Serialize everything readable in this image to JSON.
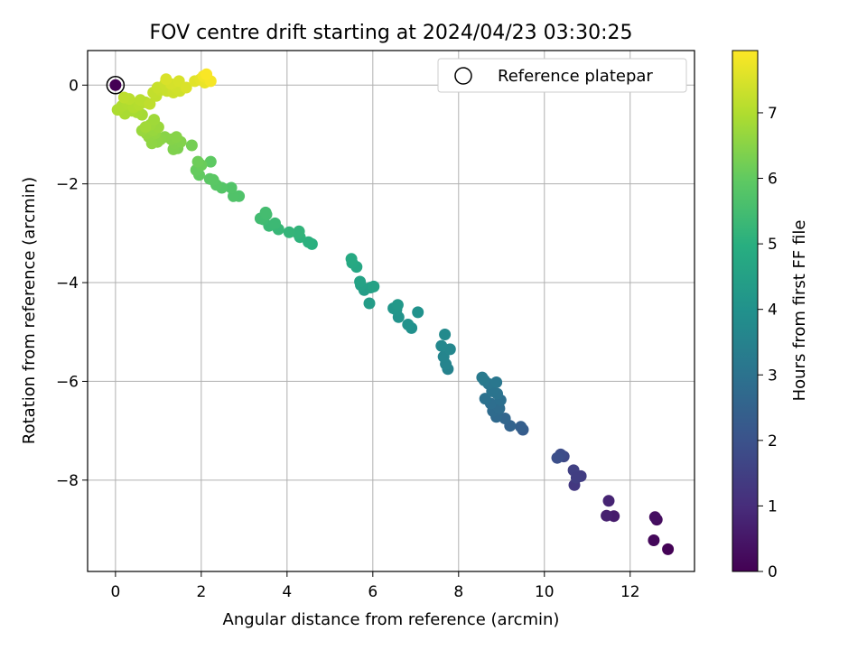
{
  "chart_data": {
    "type": "scatter",
    "title": "FOV centre drift starting at 2024/04/23 03:30:25",
    "xlabel": "Angular distance from reference (arcmin)",
    "ylabel": "Rotation from reference (arcmin)",
    "xlim": [
      -0.65,
      13.5
    ],
    "ylim": [
      -9.85,
      0.7
    ],
    "xticks": [
      0,
      2,
      4,
      6,
      8,
      10,
      12
    ],
    "yticks": [
      0,
      -2,
      -4,
      -6,
      -8
    ],
    "grid": true,
    "legend": {
      "position": "top-right",
      "entries": [
        "Reference platepar"
      ]
    },
    "colorbar": {
      "label": "Hours from first FF file",
      "range": [
        0,
        7.95
      ],
      "ticks": [
        0,
        1,
        2,
        3,
        4,
        5,
        6,
        7
      ],
      "colormap": "viridis"
    },
    "reference": {
      "x": 0,
      "y": 0
    },
    "points": [
      {
        "x": 12.88,
        "y": -9.4,
        "c": 0.05
      },
      {
        "x": 12.55,
        "y": -9.22,
        "c": 0.15
      },
      {
        "x": 12.62,
        "y": -8.8,
        "c": 0.25
      },
      {
        "x": 12.58,
        "y": -8.75,
        "c": 0.32
      },
      {
        "x": 11.62,
        "y": -8.73,
        "c": 0.6
      },
      {
        "x": 11.45,
        "y": -8.72,
        "c": 0.7
      },
      {
        "x": 11.5,
        "y": -8.42,
        "c": 0.8
      },
      {
        "x": 10.7,
        "y": -8.1,
        "c": 1.3
      },
      {
        "x": 10.85,
        "y": -7.92,
        "c": 1.4
      },
      {
        "x": 10.68,
        "y": -7.8,
        "c": 1.5
      },
      {
        "x": 10.75,
        "y": -7.95,
        "c": 1.45
      },
      {
        "x": 10.45,
        "y": -7.52,
        "c": 1.75
      },
      {
        "x": 10.38,
        "y": -7.48,
        "c": 1.85
      },
      {
        "x": 10.3,
        "y": -7.55,
        "c": 1.9
      },
      {
        "x": 9.5,
        "y": -6.98,
        "c": 2.3
      },
      {
        "x": 9.45,
        "y": -6.92,
        "c": 2.4
      },
      {
        "x": 9.2,
        "y": -6.9,
        "c": 2.5
      },
      {
        "x": 9.08,
        "y": -6.75,
        "c": 2.6
      },
      {
        "x": 8.88,
        "y": -6.72,
        "c": 2.7
      },
      {
        "x": 8.8,
        "y": -6.6,
        "c": 2.75
      },
      {
        "x": 8.95,
        "y": -6.55,
        "c": 2.8
      },
      {
        "x": 8.75,
        "y": -6.45,
        "c": 2.85
      },
      {
        "x": 8.98,
        "y": -6.38,
        "c": 2.9
      },
      {
        "x": 8.62,
        "y": -6.35,
        "c": 2.95
      },
      {
        "x": 8.9,
        "y": -6.25,
        "c": 3.0
      },
      {
        "x": 8.78,
        "y": -6.2,
        "c": 3.05
      },
      {
        "x": 8.7,
        "y": -6.05,
        "c": 3.1
      },
      {
        "x": 8.88,
        "y": -6.02,
        "c": 3.15
      },
      {
        "x": 8.6,
        "y": -5.98,
        "c": 3.2
      },
      {
        "x": 8.55,
        "y": -5.92,
        "c": 3.25
      },
      {
        "x": 7.75,
        "y": -5.75,
        "c": 3.5
      },
      {
        "x": 7.7,
        "y": -5.65,
        "c": 3.55
      },
      {
        "x": 7.65,
        "y": -5.5,
        "c": 3.6
      },
      {
        "x": 7.8,
        "y": -5.35,
        "c": 3.65
      },
      {
        "x": 7.6,
        "y": -5.28,
        "c": 3.7
      },
      {
        "x": 7.68,
        "y": -5.05,
        "c": 3.75
      },
      {
        "x": 6.9,
        "y": -4.92,
        "c": 3.95
      },
      {
        "x": 6.82,
        "y": -4.85,
        "c": 4.0
      },
      {
        "x": 6.6,
        "y": -4.7,
        "c": 4.05
      },
      {
        "x": 6.55,
        "y": -4.55,
        "c": 4.1
      },
      {
        "x": 6.48,
        "y": -4.52,
        "c": 4.15
      },
      {
        "x": 6.58,
        "y": -4.45,
        "c": 4.2
      },
      {
        "x": 7.05,
        "y": -4.6,
        "c": 4.0
      },
      {
        "x": 5.92,
        "y": -4.42,
        "c": 4.35
      },
      {
        "x": 5.8,
        "y": -4.15,
        "c": 4.4
      },
      {
        "x": 5.95,
        "y": -4.1,
        "c": 4.45
      },
      {
        "x": 5.72,
        "y": -4.05,
        "c": 4.5
      },
      {
        "x": 6.02,
        "y": -4.08,
        "c": 4.52
      },
      {
        "x": 5.7,
        "y": -3.98,
        "c": 4.55
      },
      {
        "x": 5.62,
        "y": -3.68,
        "c": 4.7
      },
      {
        "x": 5.52,
        "y": -3.6,
        "c": 4.75
      },
      {
        "x": 5.5,
        "y": -3.52,
        "c": 4.8
      },
      {
        "x": 4.58,
        "y": -3.22,
        "c": 5.0
      },
      {
        "x": 4.5,
        "y": -3.18,
        "c": 5.05
      },
      {
        "x": 4.3,
        "y": -3.08,
        "c": 5.1
      },
      {
        "x": 4.25,
        "y": -3.0,
        "c": 5.15
      },
      {
        "x": 4.28,
        "y": -2.96,
        "c": 5.17
      },
      {
        "x": 4.05,
        "y": -2.98,
        "c": 5.2
      },
      {
        "x": 3.8,
        "y": -2.92,
        "c": 5.28
      },
      {
        "x": 3.58,
        "y": -2.85,
        "c": 5.32
      },
      {
        "x": 3.72,
        "y": -2.8,
        "c": 5.35
      },
      {
        "x": 3.45,
        "y": -2.72,
        "c": 5.4
      },
      {
        "x": 3.38,
        "y": -2.7,
        "c": 5.45
      },
      {
        "x": 3.52,
        "y": -2.62,
        "c": 5.48
      },
      {
        "x": 3.5,
        "y": -2.58,
        "c": 5.5
      },
      {
        "x": 2.88,
        "y": -2.25,
        "c": 5.7
      },
      {
        "x": 2.75,
        "y": -2.25,
        "c": 5.72
      },
      {
        "x": 2.7,
        "y": -2.08,
        "c": 5.75
      },
      {
        "x": 2.48,
        "y": -2.08,
        "c": 5.8
      },
      {
        "x": 2.35,
        "y": -2.02,
        "c": 5.85
      },
      {
        "x": 2.28,
        "y": -1.92,
        "c": 5.88
      },
      {
        "x": 2.2,
        "y": -1.9,
        "c": 5.9
      },
      {
        "x": 2.22,
        "y": -1.55,
        "c": 5.95
      },
      {
        "x": 1.95,
        "y": -1.82,
        "c": 6.0
      },
      {
        "x": 1.88,
        "y": -1.72,
        "c": 6.05
      },
      {
        "x": 2.0,
        "y": -1.62,
        "c": 6.1
      },
      {
        "x": 1.92,
        "y": -1.55,
        "c": 6.15
      },
      {
        "x": 1.78,
        "y": -1.22,
        "c": 6.25
      },
      {
        "x": 1.45,
        "y": -1.28,
        "c": 6.35
      },
      {
        "x": 1.35,
        "y": -1.3,
        "c": 6.38
      },
      {
        "x": 1.38,
        "y": -1.18,
        "c": 6.4
      },
      {
        "x": 1.52,
        "y": -1.15,
        "c": 6.42
      },
      {
        "x": 1.3,
        "y": -1.1,
        "c": 6.45
      },
      {
        "x": 1.42,
        "y": -1.05,
        "c": 6.48
      },
      {
        "x": 1.15,
        "y": -1.05,
        "c": 6.5
      },
      {
        "x": 1.05,
        "y": -1.1,
        "c": 6.52
      },
      {
        "x": 0.98,
        "y": -1.15,
        "c": 6.55
      },
      {
        "x": 0.85,
        "y": -1.18,
        "c": 6.58
      },
      {
        "x": 0.78,
        "y": -1.05,
        "c": 6.6
      },
      {
        "x": 0.92,
        "y": -0.98,
        "c": 6.62
      },
      {
        "x": 0.72,
        "y": -0.98,
        "c": 6.65
      },
      {
        "x": 0.88,
        "y": -0.92,
        "c": 6.68
      },
      {
        "x": 0.62,
        "y": -0.92,
        "c": 6.7
      },
      {
        "x": 1.0,
        "y": -0.85,
        "c": 6.72
      },
      {
        "x": 0.82,
        "y": -0.8,
        "c": 6.75
      },
      {
        "x": 0.9,
        "y": -0.7,
        "c": 6.78
      },
      {
        "x": 0.7,
        "y": -0.85,
        "c": 6.8
      },
      {
        "x": 0.62,
        "y": -0.6,
        "c": 6.85
      },
      {
        "x": 0.5,
        "y": -0.55,
        "c": 6.88
      },
      {
        "x": 0.38,
        "y": -0.52,
        "c": 6.9
      },
      {
        "x": 0.22,
        "y": -0.58,
        "c": 6.92
      },
      {
        "x": 0.05,
        "y": -0.5,
        "c": 6.95
      },
      {
        "x": 0.15,
        "y": -0.42,
        "c": 6.98
      },
      {
        "x": 0.28,
        "y": -0.38,
        "c": 7.0
      },
      {
        "x": 0.42,
        "y": -0.45,
        "c": 7.02
      },
      {
        "x": 0.55,
        "y": -0.4,
        "c": 7.05
      },
      {
        "x": 0.7,
        "y": -0.35,
        "c": 7.08
      },
      {
        "x": 0.58,
        "y": -0.3,
        "c": 7.1
      },
      {
        "x": 0.32,
        "y": -0.28,
        "c": 7.12
      },
      {
        "x": 0.2,
        "y": -0.25,
        "c": 7.15
      },
      {
        "x": 0.8,
        "y": -0.38,
        "c": 7.18
      },
      {
        "x": 0.95,
        "y": -0.22,
        "c": 7.2
      },
      {
        "x": 0.88,
        "y": -0.15,
        "c": 7.22
      },
      {
        "x": 1.05,
        "y": -0.1,
        "c": 7.25
      },
      {
        "x": 0.98,
        "y": -0.05,
        "c": 7.28
      },
      {
        "x": 1.2,
        "y": -0.12,
        "c": 7.3
      },
      {
        "x": 1.15,
        "y": 0.02,
        "c": 7.32
      },
      {
        "x": 1.35,
        "y": -0.15,
        "c": 7.35
      },
      {
        "x": 1.5,
        "y": -0.12,
        "c": 7.38
      },
      {
        "x": 1.42,
        "y": -0.05,
        "c": 7.4
      },
      {
        "x": 1.3,
        "y": 0.02,
        "c": 7.45
      },
      {
        "x": 1.48,
        "y": 0.08,
        "c": 7.48
      },
      {
        "x": 1.18,
        "y": 0.12,
        "c": 7.5
      },
      {
        "x": 1.65,
        "y": -0.05,
        "c": 7.52
      },
      {
        "x": 1.85,
        "y": 0.08,
        "c": 7.6
      },
      {
        "x": 1.98,
        "y": 0.12,
        "c": 7.65
      },
      {
        "x": 2.08,
        "y": 0.05,
        "c": 7.7
      },
      {
        "x": 2.15,
        "y": 0.12,
        "c": 7.75
      },
      {
        "x": 2.05,
        "y": 0.18,
        "c": 7.8
      },
      {
        "x": 2.22,
        "y": 0.08,
        "c": 7.85
      },
      {
        "x": 2.12,
        "y": 0.22,
        "c": 7.9
      }
    ]
  }
}
